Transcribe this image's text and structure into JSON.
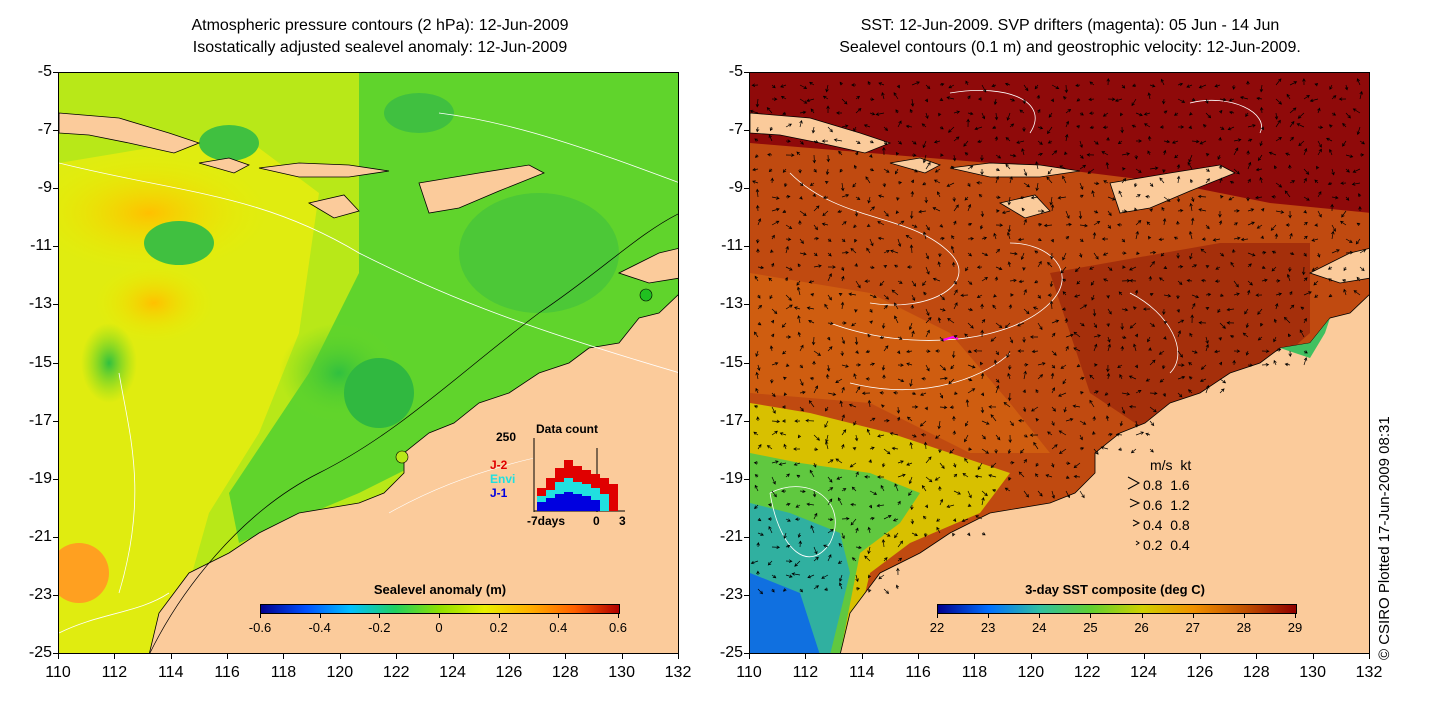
{
  "left_panel": {
    "title_line1": "Atmospheric pressure contours (2 hPa): 12-Jun-2009",
    "title_line2": "Isostatically adjusted sealevel anomaly: 12-Jun-2009",
    "y_ticks": [
      "-5",
      "-7",
      "-9",
      "-11",
      "-13",
      "-15",
      "-17",
      "-19",
      "-21",
      "-23",
      "-25"
    ],
    "x_ticks": [
      "110",
      "112",
      "114",
      "116",
      "118",
      "120",
      "122",
      "124",
      "126",
      "128",
      "130",
      "132"
    ],
    "colorbar": {
      "title": "Sealevel anomaly (m)",
      "ticks": [
        "-0.6",
        "-0.4",
        "-0.2",
        "0",
        "0.2",
        "0.4",
        "0.6"
      ]
    },
    "inset": {
      "title": "Data count",
      "ymax_label": "250",
      "series_labels": [
        "J-2",
        "Envi",
        "J-1"
      ],
      "series_colors": [
        "#e00000",
        "#20e0e0",
        "#0000e0"
      ],
      "x_labels": [
        "-7days",
        "0",
        "3"
      ]
    }
  },
  "right_panel": {
    "title_line1": "SST: 12-Jun-2009. SVP drifters (magenta): 05 Jun - 14 Jun",
    "title_line2": "Sealevel contours (0.1 m) and geostrophic velocity: 12-Jun-2009.",
    "y_ticks": [
      "-5",
      "-7",
      "-9",
      "-11",
      "-13",
      "-15",
      "-17",
      "-19",
      "-21",
      "-23",
      "-25"
    ],
    "x_ticks": [
      "110",
      "112",
      "114",
      "116",
      "118",
      "120",
      "122",
      "124",
      "126",
      "128",
      "130",
      "132"
    ],
    "colorbar": {
      "title": "3-day SST composite (deg C)",
      "ticks": [
        "22",
        "23",
        "24",
        "25",
        "26",
        "27",
        "28",
        "29"
      ]
    },
    "velocity_legend": {
      "header": "m/s  kt",
      "rows": [
        "0.8  1.6",
        "0.6  1.2",
        "0.4  0.8",
        "0.2  0.4"
      ]
    }
  },
  "copyright": "© CSIRO Plotted 17-Jun-2009 08:31",
  "colors": {
    "land": "#fbcb9b",
    "sla_colormap": [
      "#00008f",
      "#0050ff",
      "#00c0ff",
      "#20d060",
      "#90e000",
      "#e8f000",
      "#ffb000",
      "#ff6000",
      "#b00000"
    ],
    "sst_colormap": [
      "#00008f",
      "#0070ff",
      "#30c0a0",
      "#60d030",
      "#d0d000",
      "#f09000",
      "#c05000",
      "#8f0000"
    ]
  }
}
